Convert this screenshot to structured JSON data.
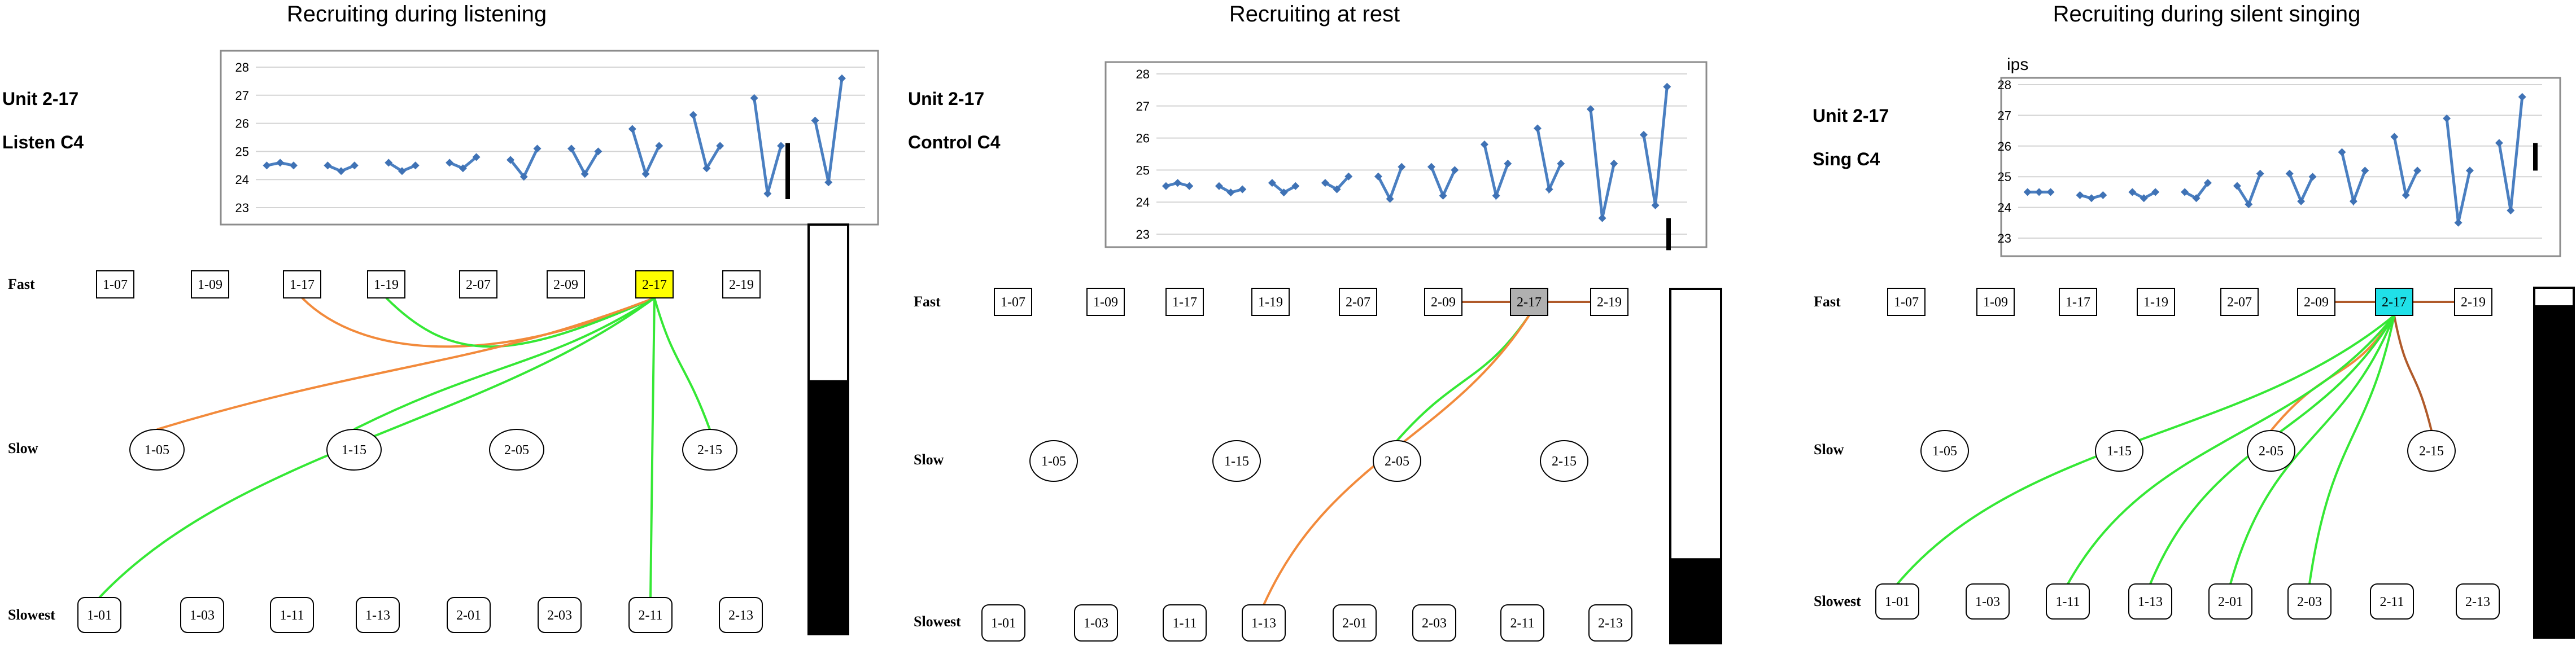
{
  "panels": [
    {
      "title": "Recruiting during listening",
      "unit_label": "Unit 2-17",
      "condition_label": "Listen C4",
      "chart_ylabel": "",
      "chart_data": {
        "type": "line",
        "ylim": [
          23,
          28
        ],
        "yticks": [
          23,
          24,
          25,
          26,
          27,
          28
        ],
        "grid": true,
        "groups": [
          [
            24.5,
            24.6,
            24.5
          ],
          [
            24.5,
            24.3,
            24.5
          ],
          [
            24.6,
            24.3,
            24.5
          ],
          [
            24.6,
            24.4,
            24.8
          ],
          [
            24.7,
            24.1,
            25.1
          ],
          [
            25.1,
            24.2,
            25.0
          ],
          [
            25.8,
            24.2,
            25.2
          ],
          [
            26.3,
            24.4,
            25.2
          ],
          [
            26.9,
            23.5,
            25.2
          ],
          [
            26.1,
            23.9,
            27.6
          ]
        ],
        "marker_bar": [
          23.3,
          25.3
        ]
      },
      "row_labels": {
        "fast": "Fast",
        "slow": "Slow",
        "slowest": "Slowest"
      },
      "fast_units": [
        "1-07",
        "1-09",
        "1-17",
        "1-19",
        "2-07",
        "2-09",
        "2-17",
        "2-19"
      ],
      "slow_units": [
        "1-05",
        "1-15",
        "2-05",
        "2-15"
      ],
      "slowest_units": [
        "1-01",
        "1-03",
        "1-11",
        "1-13",
        "2-01",
        "2-03",
        "2-11",
        "2-13"
      ],
      "selected_unit": "2-17",
      "selected_color": "#ffff00",
      "connections": [
        {
          "to": "1-17",
          "color": "#f28a3b"
        },
        {
          "to": "1-19",
          "color": "#35e835"
        },
        {
          "to": "1-05",
          "color": "#f28a3b"
        },
        {
          "to": "1-15",
          "color": "#35e835"
        },
        {
          "to": "2-15",
          "color": "#35e835"
        },
        {
          "to": "1-01",
          "color": "#35e835"
        },
        {
          "to": "2-11",
          "color": "#35e835"
        }
      ],
      "bar_fill_fraction": 0.62
    },
    {
      "title": "Recruiting at rest",
      "unit_label": "Unit 2-17",
      "condition_label": "Control C4",
      "chart_ylabel": "",
      "chart_data": {
        "type": "line",
        "ylim": [
          23,
          28
        ],
        "yticks": [
          23,
          24,
          25,
          26,
          27,
          28
        ],
        "grid": true,
        "groups": [
          [
            24.5,
            24.6,
            24.5
          ],
          [
            24.5,
            24.3,
            24.4
          ],
          [
            24.6,
            24.3,
            24.5
          ],
          [
            24.6,
            24.4,
            24.8
          ],
          [
            24.8,
            24.1,
            25.1
          ],
          [
            25.1,
            24.2,
            25.0
          ],
          [
            25.8,
            24.2,
            25.2
          ],
          [
            26.3,
            24.4,
            25.2
          ],
          [
            26.9,
            23.5,
            25.2
          ],
          [
            26.1,
            23.9,
            27.6
          ]
        ],
        "marker_bar": [
          22.5,
          23.5
        ]
      },
      "row_labels": {
        "fast": "Fast",
        "slow": "Slow",
        "slowest": "Slowest"
      },
      "fast_units": [
        "1-07",
        "1-09",
        "1-17",
        "1-19",
        "2-07",
        "2-09",
        "2-17",
        "2-19"
      ],
      "slow_units": [
        "1-05",
        "1-15",
        "2-05",
        "2-15"
      ],
      "slowest_units": [
        "1-01",
        "1-03",
        "1-11",
        "1-13",
        "2-01",
        "2-03",
        "2-11",
        "2-13"
      ],
      "selected_unit": "2-17",
      "selected_color": "#b0b0b0",
      "connections": [
        {
          "to": "2-09",
          "color": "#b05a2a"
        },
        {
          "to": "2-19",
          "color": "#b05a2a"
        },
        {
          "to": "2-05",
          "color": "#35e835"
        },
        {
          "to": "1-13",
          "color": "#f28a3b"
        }
      ],
      "bar_fill_fraction": 0.24
    },
    {
      "title": "Recruiting during silent singing",
      "unit_label": "Unit 2-17",
      "condition_label": "Sing C4",
      "chart_ylabel": "ips",
      "chart_data": {
        "type": "line",
        "ylim": [
          23,
          28
        ],
        "yticks": [
          23,
          24,
          25,
          26,
          27,
          28
        ],
        "grid": true,
        "groups": [
          [
            24.5,
            24.5,
            24.5
          ],
          [
            24.4,
            24.3,
            24.4
          ],
          [
            24.5,
            24.3,
            24.5
          ],
          [
            24.5,
            24.3,
            24.8
          ],
          [
            24.7,
            24.1,
            25.1
          ],
          [
            25.1,
            24.2,
            25.0
          ],
          [
            25.8,
            24.2,
            25.2
          ],
          [
            26.3,
            24.4,
            25.2
          ],
          [
            26.9,
            23.5,
            25.2
          ],
          [
            26.1,
            23.9,
            27.6
          ]
        ],
        "marker_bar": [
          25.2,
          26.1
        ]
      },
      "row_labels": {
        "fast": "Fast",
        "slow": "Slow",
        "slowest": "Slowest"
      },
      "fast_units": [
        "1-07",
        "1-09",
        "1-17",
        "1-19",
        "2-07",
        "2-09",
        "2-17",
        "2-19"
      ],
      "slow_units": [
        "1-05",
        "1-15",
        "2-05",
        "2-15"
      ],
      "slowest_units": [
        "1-01",
        "1-03",
        "1-11",
        "1-13",
        "2-01",
        "2-03",
        "2-11",
        "2-13"
      ],
      "selected_unit": "2-17",
      "selected_color": "#20e0e8",
      "connections": [
        {
          "to": "2-09",
          "color": "#b05a2a"
        },
        {
          "to": "2-19",
          "color": "#b05a2a"
        },
        {
          "to": "2-05",
          "color": "#f28a3b"
        },
        {
          "to": "2-15",
          "color": "#b05a2a"
        },
        {
          "to": "1-01",
          "color": "#35e835"
        },
        {
          "to": "1-11",
          "color": "#35e835"
        },
        {
          "to": "1-13",
          "color": "#35e835"
        },
        {
          "to": "2-01",
          "color": "#35e835"
        },
        {
          "to": "2-03",
          "color": "#35e835"
        }
      ],
      "bar_fill_fraction": 0.95
    }
  ]
}
